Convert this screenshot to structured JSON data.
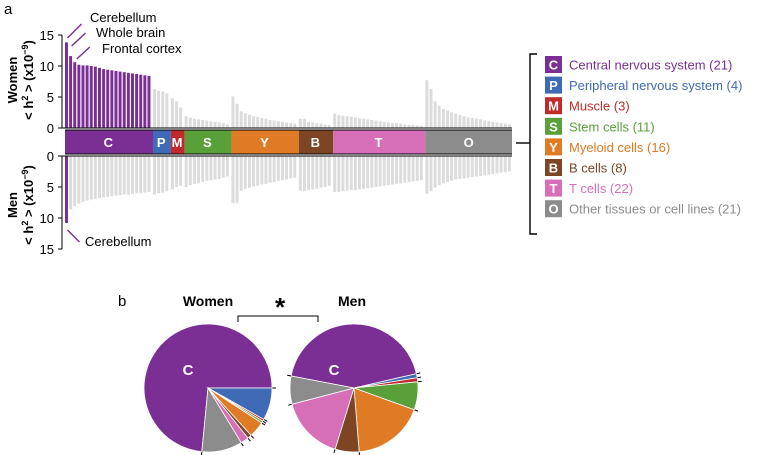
{
  "chart_data": [
    {
      "type": "bar",
      "panel_label": "a",
      "ylim": [
        0,
        15
      ],
      "yticks": [
        0,
        5,
        10,
        15
      ],
      "top_ylabel": [
        "Women",
        "< h",
        "2",
        " > (x10",
        "−9",
        ")"
      ],
      "bottom_ylabel": [
        "Men",
        "< h",
        "2",
        " > (x10",
        "−9",
        ")"
      ],
      "annotations_top": [
        "Cerebellum",
        "Whole brain",
        "Frontal cortex"
      ],
      "annotation_bottom": "Cerebellum",
      "highlight_color": "#7b2f94",
      "neutral_color": "#dcdcdc",
      "groups": [
        {
          "code": "C",
          "label": "Central nervous system (21)",
          "color": "#7b2f94",
          "women": [
            13.8,
            11.6,
            10.6,
            10.2,
            10.1,
            10.1,
            10.0,
            9.9,
            9.7,
            9.5,
            9.4,
            9.3,
            9.2,
            9.1,
            9.0,
            8.9,
            8.8,
            8.7,
            8.6,
            8.5,
            8.4
          ],
          "men": [
            10.8,
            8.6,
            8.1,
            7.7,
            7.4,
            7.2,
            7.0,
            6.9,
            6.8,
            6.7,
            6.6,
            6.5,
            6.4,
            6.3,
            6.2,
            6.2,
            6.1,
            6.0,
            6.0,
            5.9,
            5.8
          ],
          "women_highlight": 21,
          "men_highlight": 1
        },
        {
          "code": "P",
          "label": "Peripheral nervous system (4)",
          "color": "#3f6bb6",
          "women": [
            6.3,
            6.0,
            5.9,
            5.6
          ],
          "men": [
            6.2,
            6.0,
            5.9,
            5.7
          ]
        },
        {
          "code": "M",
          "label": "Muscle (3)",
          "color": "#c02a2a",
          "women": [
            4.8,
            4.3,
            3.3
          ],
          "men": [
            5.4,
            5.0,
            4.8
          ]
        },
        {
          "code": "S",
          "label": "Stem cells (11)",
          "color": "#5aa03a",
          "women": [
            1.9,
            1.7,
            1.5,
            1.4,
            1.3,
            1.2,
            1.1,
            1.0,
            0.9,
            0.8,
            0.6
          ],
          "men": [
            5.0,
            4.7,
            4.5,
            4.4,
            4.2,
            4.0,
            3.9,
            3.8,
            3.7,
            3.5,
            3.3
          ]
        },
        {
          "code": "Y",
          "label": "Myeloid cells (16)",
          "color": "#df7a25",
          "women": [
            5.1,
            3.9,
            2.7,
            2.4,
            2.1,
            1.9,
            1.8,
            1.6,
            1.5,
            1.3,
            1.2,
            1.1,
            1.0,
            0.9,
            0.8,
            0.7
          ],
          "men": [
            7.6,
            7.6,
            5.6,
            5.3,
            5.1,
            4.9,
            4.8,
            4.6,
            4.5,
            4.3,
            4.2,
            4.0,
            3.9,
            3.8,
            3.6,
            3.5
          ]
        },
        {
          "code": "B",
          "label": "B cells (8)",
          "color": "#7d4523",
          "women": [
            1.5,
            1.5,
            1.0,
            0.9,
            0.8,
            0.7,
            0.6,
            0.5
          ],
          "men": [
            5.6,
            5.6,
            5.5,
            5.4,
            5.3,
            5.1,
            5.0,
            4.8
          ]
        },
        {
          "code": "T",
          "label": "T cells (22)",
          "color": "#d76fb8",
          "women": [
            2.3,
            2.1,
            2.0,
            1.9,
            1.8,
            1.7,
            1.6,
            1.5,
            1.4,
            1.3,
            1.2,
            1.1,
            1.0,
            0.9,
            0.8,
            0.8,
            0.7,
            0.6,
            0.5,
            0.5,
            0.4,
            0.3
          ],
          "men": [
            5.8,
            5.8,
            5.7,
            5.6,
            5.5,
            5.5,
            5.4,
            5.3,
            5.2,
            5.1,
            5.0,
            4.9,
            4.8,
            4.7,
            4.6,
            4.5,
            4.4,
            4.3,
            4.2,
            4.1,
            4.0,
            3.9
          ]
        },
        {
          "code": "O",
          "label": "Other tissues or cell lines (21)",
          "color": "#8c8c8c",
          "women": [
            7.7,
            6.3,
            4.3,
            3.6,
            3.1,
            2.8,
            2.5,
            2.3,
            2.1,
            1.9,
            1.7,
            1.6,
            1.5,
            1.4,
            1.2,
            1.1,
            1.0,
            0.9,
            0.8,
            0.7,
            0.6
          ],
          "men": [
            6.1,
            5.7,
            5.1,
            4.7,
            4.4,
            4.2,
            4.0,
            3.8,
            3.7,
            3.6,
            3.5,
            3.4,
            3.3,
            3.2,
            3.1,
            3.0,
            2.9,
            2.8,
            2.7,
            2.6,
            2.5
          ]
        }
      ]
    },
    {
      "type": "pie",
      "panel_label": "b",
      "significance_marker": "*",
      "pies": [
        {
          "title": "Women",
          "center_label": "C",
          "slices": [
            {
              "code": "C",
              "value": 72
            },
            {
              "code": "P",
              "value": 8
            },
            {
              "code": "M",
              "value": 0.5
            },
            {
              "code": "S",
              "value": 0.5
            },
            {
              "code": "Y",
              "value": 4
            },
            {
              "code": "B",
              "value": 1
            },
            {
              "code": "T",
              "value": 2
            },
            {
              "code": "O",
              "value": 10
            }
          ]
        },
        {
          "title": "Men",
          "center_label": "C",
          "slices": [
            {
              "code": "C",
              "value": 43
            },
            {
              "code": "P",
              "value": 1
            },
            {
              "code": "M",
              "value": 1
            },
            {
              "code": "S",
              "value": 7
            },
            {
              "code": "Y",
              "value": 18
            },
            {
              "code": "B",
              "value": 6
            },
            {
              "code": "T",
              "value": 16
            },
            {
              "code": "O",
              "value": 7
            }
          ]
        }
      ]
    }
  ]
}
